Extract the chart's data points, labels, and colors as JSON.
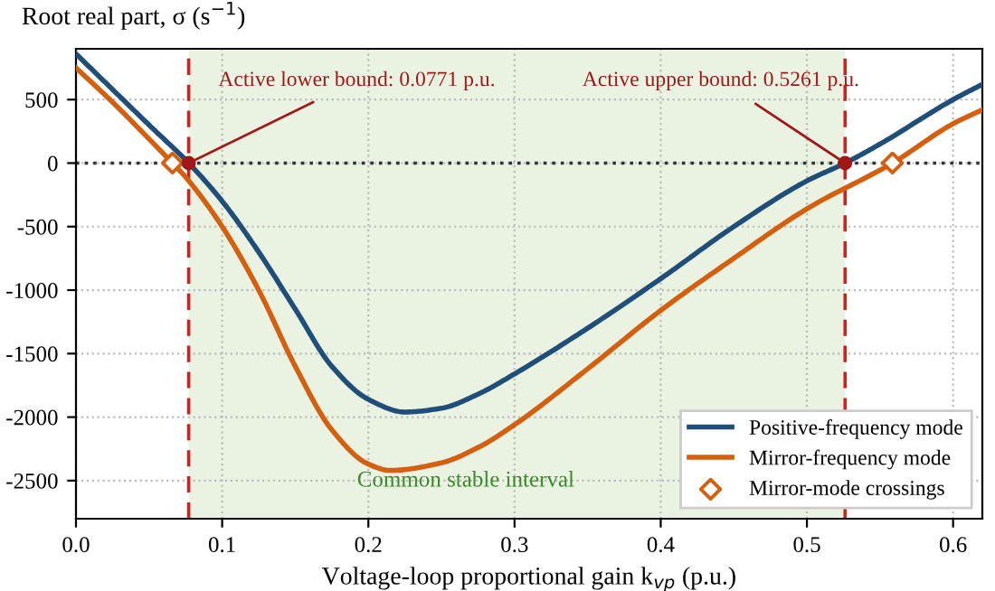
{
  "chart_data": {
    "type": "line",
    "ylabel": "Root real part, σ (s$^{−1}$)",
    "xlabel": "Voltage-loop proportional gain k$_{vp}$ (p.u.)",
    "xlim": [
      0,
      0.62
    ],
    "ylim": [
      -2800,
      900
    ],
    "xticks": [
      {
        "value": 0,
        "label": "0.0"
      },
      0.1,
      0.2,
      0.3,
      0.4,
      0.5,
      0.6
    ],
    "yticks": [
      -2500,
      -2000,
      -1500,
      -1000,
      -500,
      0,
      500
    ],
    "grid": true,
    "legend": "bottom right",
    "series": [
      {
        "name": "Positive-frequency mode",
        "color": "#1f4e79",
        "x": [
          0,
          0.025,
          0.05,
          0.0771,
          0.1,
          0.125,
          0.15,
          0.175,
          0.2,
          0.225,
          0.25,
          0.275,
          0.3,
          0.35,
          0.4,
          0.45,
          0.5,
          0.5261,
          0.55,
          0.6,
          0.62
        ],
        "values": [
          860,
          580,
          300,
          0,
          -300,
          -700,
          -1150,
          -1600,
          -1860,
          -1960,
          -1930,
          -1820,
          -1660,
          -1300,
          -910,
          -500,
          -140,
          0,
          150,
          500,
          620
        ]
      },
      {
        "name": "Mirror-frequency mode",
        "color": "#d35f0f",
        "x": [
          0,
          0.025,
          0.05,
          0.066,
          0.075,
          0.1,
          0.125,
          0.15,
          0.175,
          0.2,
          0.215,
          0.25,
          0.275,
          0.3,
          0.35,
          0.4,
          0.45,
          0.5,
          0.5585,
          0.6,
          0.62
        ],
        "values": [
          750,
          480,
          190,
          0,
          -110,
          -500,
          -1000,
          -1600,
          -2100,
          -2370,
          -2420,
          -2360,
          -2240,
          -2060,
          -1620,
          -1160,
          -750,
          -360,
          0,
          310,
          420
        ]
      },
      {
        "name": "Mirror-mode crossings",
        "type": "scatter",
        "marker": "diamond",
        "color": "#d35f0f",
        "x": [
          0.066,
          0.5585
        ],
        "values": [
          0,
          0
        ]
      }
    ],
    "ref_lines": [
      {
        "axis": "y",
        "value": 0,
        "color": "#333333",
        "line_style": "dotted"
      },
      {
        "axis": "x",
        "value": 0.0771,
        "color": "#cc2222",
        "line_style": "dashed"
      },
      {
        "axis": "x",
        "value": 0.5261,
        "color": "#cc2222",
        "line_style": "dashed"
      }
    ],
    "bands": [
      {
        "axis": "x",
        "from": 0.0771,
        "to": 0.5261,
        "label": "Common stable interval",
        "color": "#eaf3e2"
      }
    ],
    "annotations": [
      {
        "text": "Active lower bound: 0.0771 p.u.",
        "x": 0.0771,
        "y": 0
      },
      {
        "text": "Active upper bound: 0.5261 p.u.",
        "x": 0.5261,
        "y": 0
      }
    ]
  }
}
